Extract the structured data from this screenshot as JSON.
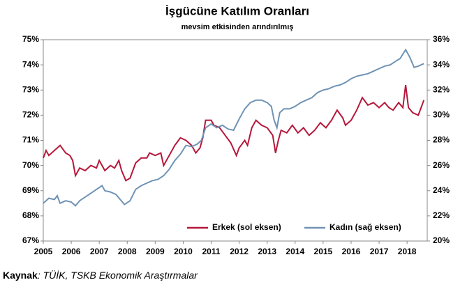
{
  "chart_data": {
    "type": "line",
    "title": "İşgücüne Katılım Oranları",
    "subtitle": "mevsim etkisinden arındırılmış",
    "source_label": "Kaynak",
    "source_text": ": TÜİK, TSKB Ekonomik Araştırmalar",
    "xlim": [
      2005,
      2018.72
    ],
    "xticks": [
      2005,
      2006,
      2007,
      2008,
      2009,
      2010,
      2011,
      2012,
      2013,
      2014,
      2015,
      2016,
      2017,
      2018
    ],
    "ylim": [
      67,
      75
    ],
    "yticks": [
      {
        "value": 67,
        "label": "67%"
      },
      {
        "value": 68,
        "label": "68%"
      },
      {
        "value": 69,
        "label": "69%"
      },
      {
        "value": 70,
        "label": "70%"
      },
      {
        "value": 71,
        "label": "71%"
      },
      {
        "value": 72,
        "label": "72%"
      },
      {
        "value": 73,
        "label": "73%"
      },
      {
        "value": 74,
        "label": "74%"
      },
      {
        "value": 75,
        "label": "75%"
      }
    ],
    "y2lim": [
      20,
      36
    ],
    "y2ticks": [
      {
        "value": 20,
        "label": "20%"
      },
      {
        "value": 22,
        "label": "22%"
      },
      {
        "value": 24,
        "label": "24%"
      },
      {
        "value": 26,
        "label": "26%"
      },
      {
        "value": 28,
        "label": "28%"
      },
      {
        "value": 30,
        "label": "30%"
      },
      {
        "value": 32,
        "label": "32%"
      },
      {
        "value": 34,
        "label": "34%"
      },
      {
        "value": 36,
        "label": "36%"
      }
    ],
    "series": [
      {
        "name": "Erkek (sol eksen)",
        "color": "#b5173a",
        "axis": "y",
        "x": [
          2005.0,
          2005.1,
          2005.2,
          2005.4,
          2005.6,
          2005.8,
          2005.95,
          2006.05,
          2006.15,
          2006.3,
          2006.5,
          2006.7,
          2006.9,
          2007.0,
          2007.2,
          2007.4,
          2007.55,
          2007.7,
          2007.8,
          2007.95,
          2008.1,
          2008.3,
          2008.5,
          2008.7,
          2008.8,
          2009.0,
          2009.2,
          2009.3,
          2009.5,
          2009.7,
          2009.9,
          2010.1,
          2010.3,
          2010.45,
          2010.6,
          2010.7,
          2010.8,
          2011.0,
          2011.1,
          2011.3,
          2011.5,
          2011.7,
          2011.9,
          2012.0,
          2012.2,
          2012.3,
          2012.45,
          2012.6,
          2012.8,
          2013.0,
          2013.2,
          2013.3,
          2013.4,
          2013.5,
          2013.7,
          2013.9,
          2014.1,
          2014.3,
          2014.5,
          2014.7,
          2014.9,
          2015.1,
          2015.3,
          2015.5,
          2015.7,
          2015.8,
          2016.0,
          2016.2,
          2016.4,
          2016.6,
          2016.8,
          2017.0,
          2017.2,
          2017.35,
          2017.5,
          2017.7,
          2017.85,
          2017.95,
          2018.05,
          2018.2,
          2018.4,
          2018.6
        ],
        "values": [
          70.3,
          70.6,
          70.4,
          70.6,
          70.8,
          70.5,
          70.4,
          70.2,
          69.6,
          69.9,
          69.8,
          70.0,
          69.9,
          70.2,
          69.8,
          70.0,
          69.9,
          70.2,
          69.8,
          69.4,
          69.5,
          70.1,
          70.3,
          70.3,
          70.5,
          70.4,
          70.5,
          70.0,
          70.4,
          70.8,
          71.1,
          71.0,
          70.8,
          70.5,
          70.7,
          71.1,
          71.8,
          71.8,
          71.6,
          71.5,
          71.2,
          70.9,
          70.4,
          70.7,
          71.0,
          70.8,
          71.5,
          71.8,
          71.6,
          71.5,
          71.2,
          70.5,
          71.0,
          71.4,
          71.3,
          71.6,
          71.3,
          71.5,
          71.2,
          71.4,
          71.7,
          71.5,
          71.8,
          72.2,
          71.9,
          71.6,
          71.8,
          72.2,
          72.7,
          72.4,
          72.5,
          72.3,
          72.5,
          72.3,
          72.2,
          72.5,
          72.3,
          73.2,
          72.3,
          72.1,
          72.0,
          72.6
        ]
      },
      {
        "name": "Kadın (sağ eksen)",
        "color": "#6f93b5",
        "axis": "y2",
        "x": [
          2005.0,
          2005.2,
          2005.4,
          2005.5,
          2005.6,
          2005.8,
          2006.0,
          2006.15,
          2006.3,
          2006.5,
          2006.7,
          2006.9,
          2007.1,
          2007.2,
          2007.4,
          2007.6,
          2007.75,
          2007.9,
          2008.1,
          2008.3,
          2008.5,
          2008.7,
          2008.9,
          2009.1,
          2009.3,
          2009.5,
          2009.7,
          2009.9,
          2010.1,
          2010.3,
          2010.5,
          2010.65,
          2010.8,
          2011.0,
          2011.2,
          2011.4,
          2011.6,
          2011.8,
          2012.0,
          2012.2,
          2012.4,
          2012.6,
          2012.8,
          2013.0,
          2013.15,
          2013.25,
          2013.35,
          2013.45,
          2013.6,
          2013.8,
          2014.0,
          2014.2,
          2014.4,
          2014.6,
          2014.8,
          2015.0,
          2015.2,
          2015.4,
          2015.6,
          2015.8,
          2016.0,
          2016.2,
          2016.4,
          2016.6,
          2016.8,
          2017.0,
          2017.2,
          2017.4,
          2017.6,
          2017.75,
          2017.95,
          2018.1,
          2018.25,
          2018.4,
          2018.6
        ],
        "values": [
          23.0,
          23.4,
          23.3,
          23.6,
          23.0,
          23.2,
          23.1,
          22.8,
          23.2,
          23.5,
          23.8,
          24.1,
          24.4,
          24.0,
          23.9,
          23.7,
          23.3,
          22.9,
          23.2,
          24.1,
          24.4,
          24.6,
          24.8,
          24.9,
          25.2,
          25.7,
          26.4,
          26.9,
          27.6,
          27.5,
          27.7,
          28.0,
          29.0,
          29.3,
          29.0,
          29.2,
          28.9,
          28.8,
          29.7,
          30.5,
          31.0,
          31.2,
          31.2,
          31.0,
          30.7,
          29.6,
          29.0,
          30.2,
          30.5,
          30.5,
          30.7,
          31.0,
          31.2,
          31.4,
          31.8,
          32.0,
          32.1,
          32.3,
          32.4,
          32.6,
          32.9,
          33.1,
          33.2,
          33.3,
          33.5,
          33.7,
          33.9,
          34.0,
          34.3,
          34.5,
          35.2,
          34.6,
          33.8,
          33.9,
          34.1
        ]
      }
    ]
  }
}
